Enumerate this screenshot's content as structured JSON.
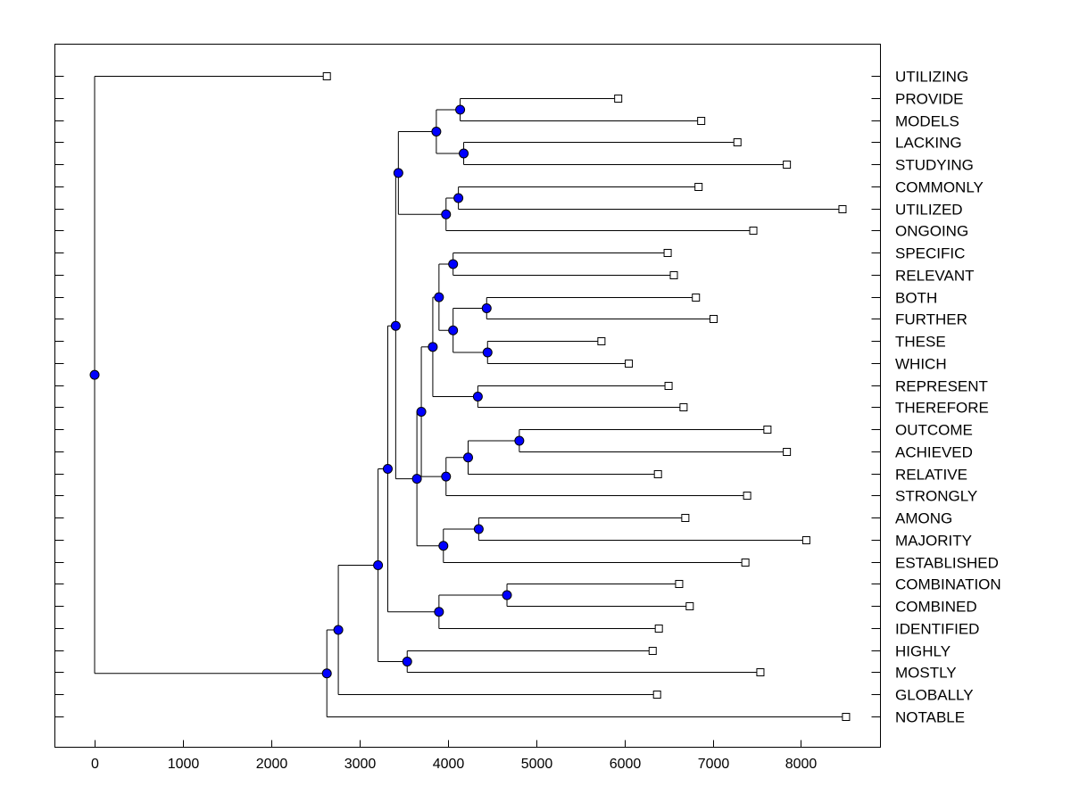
{
  "chart_data": {
    "type": "dendrogram",
    "orientation": "horizontal",
    "xlim": [
      -450,
      8900
    ],
    "x_ticks": [
      0,
      1000,
      2000,
      3000,
      4000,
      5000,
      6000,
      7000,
      8000
    ],
    "colors": {
      "merge_node": "#0000ff",
      "leaf_marker": "#ffffff",
      "lines": "#000000"
    },
    "legend": "none",
    "grid": false,
    "leaves": [
      {
        "label": "UTILIZING",
        "value": 2630
      },
      {
        "label": "PROVIDE",
        "value": 5930
      },
      {
        "label": "MODELS",
        "value": 6870
      },
      {
        "label": "LACKING",
        "value": 7280
      },
      {
        "label": "STUDYING",
        "value": 7840
      },
      {
        "label": "COMMONLY",
        "value": 6840
      },
      {
        "label": "UTILIZED",
        "value": 8470
      },
      {
        "label": "ONGOING",
        "value": 7460
      },
      {
        "label": "SPECIFIC",
        "value": 6490
      },
      {
        "label": "RELEVANT",
        "value": 6560
      },
      {
        "label": "BOTH",
        "value": 6810
      },
      {
        "label": "FURTHER",
        "value": 7010
      },
      {
        "label": "THESE",
        "value": 5740
      },
      {
        "label": "WHICH",
        "value": 6050
      },
      {
        "label": "REPRESENT",
        "value": 6500
      },
      {
        "label": "THEREFORE",
        "value": 6670
      },
      {
        "label": "OUTCOME",
        "value": 7620
      },
      {
        "label": "ACHIEVED",
        "value": 7840
      },
      {
        "label": "RELATIVE",
        "value": 6380
      },
      {
        "label": "STRONGLY",
        "value": 7390
      },
      {
        "label": "AMONG",
        "value": 6690
      },
      {
        "label": "MAJORITY",
        "value": 8060
      },
      {
        "label": "ESTABLISHED",
        "value": 7370
      },
      {
        "label": "COMBINATION",
        "value": 6620
      },
      {
        "label": "COMBINED",
        "value": 6740
      },
      {
        "label": "IDENTIFIED",
        "value": 6390
      },
      {
        "label": "HIGHLY",
        "value": 6320
      },
      {
        "label": "MOSTLY",
        "value": 7540
      },
      {
        "label": "GLOBALLY",
        "value": 6370
      },
      {
        "label": "NOTABLE",
        "value": 8510
      }
    ],
    "merges": [
      {
        "id": "m1",
        "value": 4140,
        "children": [
          "PROVIDE",
          "MODELS"
        ]
      },
      {
        "id": "m2",
        "value": 4180,
        "children": [
          "LACKING",
          "STUDYING"
        ]
      },
      {
        "id": "m3",
        "value": 3870,
        "children": [
          "m1",
          "m2"
        ]
      },
      {
        "id": "m4",
        "value": 4120,
        "children": [
          "COMMONLY",
          "UTILIZED"
        ]
      },
      {
        "id": "m5",
        "value": 3980,
        "children": [
          "m4",
          "ONGOING"
        ]
      },
      {
        "id": "m6",
        "value": 3440,
        "children": [
          "m3",
          "m5"
        ]
      },
      {
        "id": "m7",
        "value": 4060,
        "children": [
          "SPECIFIC",
          "RELEVANT"
        ]
      },
      {
        "id": "m8",
        "value": 4440,
        "children": [
          "BOTH",
          "FURTHER"
        ]
      },
      {
        "id": "m9",
        "value": 4450,
        "children": [
          "THESE",
          "WHICH"
        ]
      },
      {
        "id": "m10",
        "value": 4060,
        "children": [
          "m8",
          "m9"
        ]
      },
      {
        "id": "m11",
        "value": 3900,
        "children": [
          "m7",
          "m10"
        ]
      },
      {
        "id": "m12",
        "value": 4340,
        "children": [
          "REPRESENT",
          "THEREFORE"
        ]
      },
      {
        "id": "m13",
        "value": 3830,
        "children": [
          "m11",
          "m12"
        ]
      },
      {
        "id": "m14",
        "value": 4810,
        "children": [
          "OUTCOME",
          "ACHIEVED"
        ]
      },
      {
        "id": "m15",
        "value": 4230,
        "children": [
          "m14",
          "RELATIVE"
        ]
      },
      {
        "id": "m16",
        "value": 3980,
        "children": [
          "m15",
          "STRONGLY"
        ]
      },
      {
        "id": "m17",
        "value": 3700,
        "children": [
          "m13",
          "m16"
        ]
      },
      {
        "id": "m18",
        "value": 4350,
        "children": [
          "AMONG",
          "MAJORITY"
        ]
      },
      {
        "id": "m19",
        "value": 3950,
        "children": [
          "m18",
          "ESTABLISHED"
        ]
      },
      {
        "id": "m20",
        "value": 3650,
        "children": [
          "m17",
          "m19"
        ]
      },
      {
        "id": "m21",
        "value": 3410,
        "children": [
          "m6",
          "m20"
        ]
      },
      {
        "id": "m22",
        "value": 4670,
        "children": [
          "COMBINATION",
          "COMBINED"
        ]
      },
      {
        "id": "m23",
        "value": 3900,
        "children": [
          "m22",
          "IDENTIFIED"
        ]
      },
      {
        "id": "m24",
        "value": 3320,
        "children": [
          "m21",
          "m23"
        ]
      },
      {
        "id": "m25",
        "value": 3540,
        "children": [
          "HIGHLY",
          "MOSTLY"
        ]
      },
      {
        "id": "m26",
        "value": 3210,
        "children": [
          "m24",
          "m25"
        ]
      },
      {
        "id": "m27",
        "value": 2760,
        "children": [
          "m26",
          "GLOBALLY"
        ]
      },
      {
        "id": "m28",
        "value": 2630,
        "children": [
          "m27",
          "NOTABLE"
        ]
      },
      {
        "id": "m29",
        "value": 0,
        "children": [
          "UTILIZING",
          "m28"
        ]
      }
    ]
  }
}
